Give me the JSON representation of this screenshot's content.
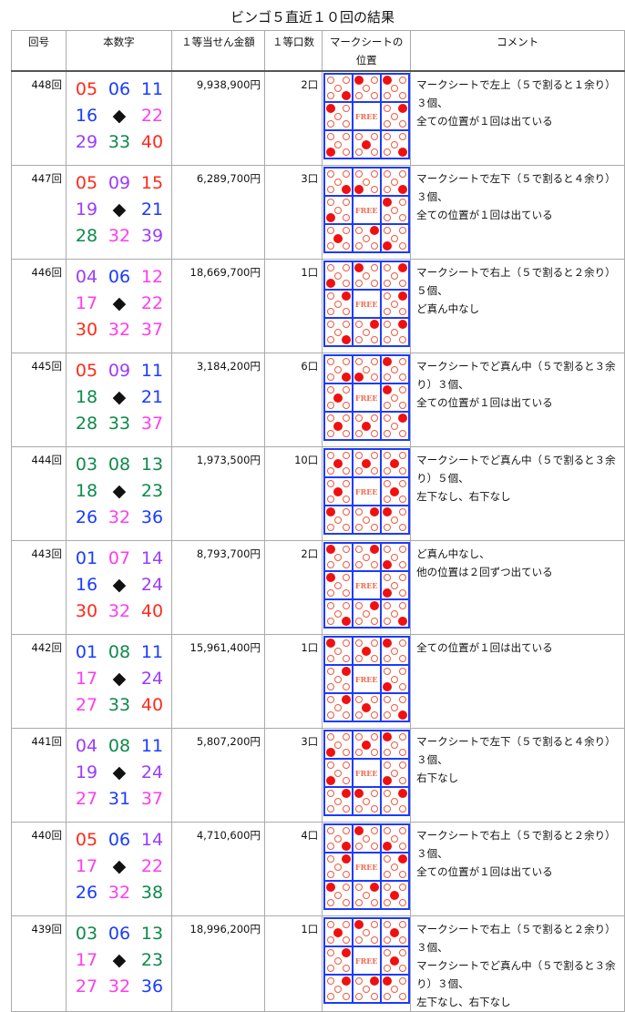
{
  "title": "ビンゴ５直近１０回の結果",
  "headers": [
    "回号",
    "本数字",
    "１等当せん金額",
    "１等口数",
    "マークシートの位置",
    "コメント"
  ],
  "free_label": "FREE",
  "center_symbol": "◆",
  "remainder_colors": {
    "0": "#ff2a1a",
    "1": "#1a3cff",
    "2": "#ff3cf0",
    "3": "#0d8a4a",
    "4": "#9a3cff"
  },
  "rows": [
    {
      "no": "448回",
      "numbers": [
        "05",
        "06",
        "11",
        "16",
        "22",
        "29",
        "33",
        "40"
      ],
      "prize": "9,938,900円",
      "count": "2口",
      "comment": "マークシートで左上（５で割ると１余り）３個、\n全ての位置が１回は出ている"
    },
    {
      "no": "447回",
      "numbers": [
        "05",
        "09",
        "15",
        "19",
        "21",
        "28",
        "32",
        "39"
      ],
      "prize": "6,289,700円",
      "count": "3口",
      "comment": "マークシートで左下（５で割ると４余り）３個、\n全ての位置が１回は出ている"
    },
    {
      "no": "446回",
      "numbers": [
        "04",
        "06",
        "12",
        "17",
        "22",
        "30",
        "32",
        "37"
      ],
      "prize": "18,669,700円",
      "count": "1口",
      "comment": "マークシートで右上（５で割ると２余り）５個、\nど真ん中なし"
    },
    {
      "no": "445回",
      "numbers": [
        "05",
        "09",
        "11",
        "18",
        "21",
        "28",
        "33",
        "37"
      ],
      "prize": "3,184,200円",
      "count": "6口",
      "comment": "マークシートでど真ん中（５で割ると３余り）３個、\n全ての位置が１回は出ている"
    },
    {
      "no": "444回",
      "numbers": [
        "03",
        "08",
        "13",
        "18",
        "23",
        "26",
        "32",
        "36"
      ],
      "prize": "1,973,500円",
      "count": "10口",
      "comment": "マークシートでど真ん中（５で割ると３余り）５個、\n左下なし、右下なし"
    },
    {
      "no": "443回",
      "numbers": [
        "01",
        "07",
        "14",
        "16",
        "24",
        "30",
        "32",
        "40"
      ],
      "prize": "8,793,700円",
      "count": "2口",
      "comment": "ど真ん中なし、\n他の位置は２回ずつ出ている"
    },
    {
      "no": "442回",
      "numbers": [
        "01",
        "08",
        "11",
        "17",
        "24",
        "27",
        "33",
        "40"
      ],
      "prize": "15,961,400円",
      "count": "1口",
      "comment": "全ての位置が１回は出ている"
    },
    {
      "no": "441回",
      "numbers": [
        "04",
        "08",
        "11",
        "19",
        "24",
        "27",
        "31",
        "37"
      ],
      "prize": "5,807,200円",
      "count": "3口",
      "comment": "マークシートで左下（５で割ると４余り）３個、\n右下なし"
    },
    {
      "no": "440回",
      "numbers": [
        "05",
        "06",
        "14",
        "17",
        "22",
        "26",
        "32",
        "38"
      ],
      "prize": "4,710,600円",
      "count": "4口",
      "comment": "マークシートで右上（５で割ると２余り）３個、\n全ての位置が１回は出ている"
    },
    {
      "no": "439回",
      "numbers": [
        "03",
        "06",
        "13",
        "17",
        "23",
        "27",
        "32",
        "36"
      ],
      "prize": "18,996,200円",
      "count": "1口",
      "comment": "マークシートで右上（５で割ると２余り）３個、\nマークシートでど真ん中（５で割ると３余り）３個、\n左下なし、右下なし"
    }
  ]
}
